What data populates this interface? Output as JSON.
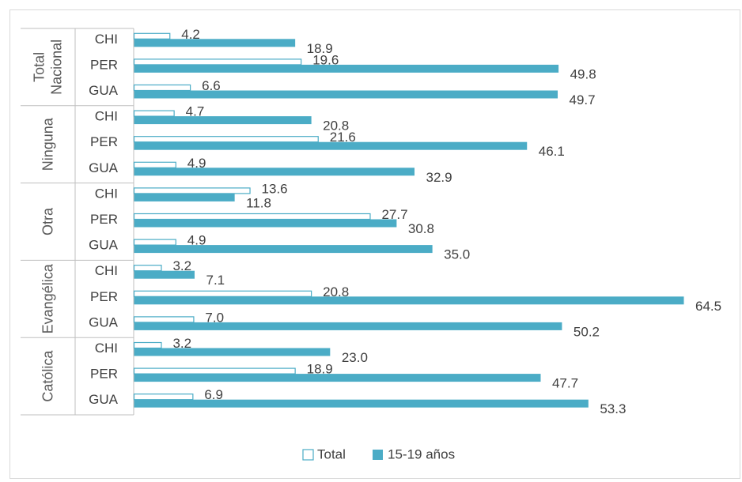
{
  "chart_data": {
    "type": "bar",
    "orientation": "horizontal",
    "groups": [
      {
        "name": "Total Nacional",
        "name_lines": [
          "Total",
          "Nacional"
        ],
        "categories": [
          "CHI",
          "PER",
          "GUA"
        ],
        "total": [
          4.2,
          19.6,
          6.6
        ],
        "adolescent": [
          18.9,
          49.8,
          49.7
        ]
      },
      {
        "name": "Ninguna",
        "name_lines": [
          "Ninguna"
        ],
        "categories": [
          "CHI",
          "PER",
          "GUA"
        ],
        "total": [
          4.7,
          21.6,
          4.9
        ],
        "adolescent": [
          20.8,
          46.1,
          32.9
        ]
      },
      {
        "name": "Otra",
        "name_lines": [
          "Otra"
        ],
        "categories": [
          "CHI",
          "PER",
          "GUA"
        ],
        "total": [
          13.6,
          27.7,
          4.9
        ],
        "adolescent": [
          11.8,
          30.8,
          35.0
        ]
      },
      {
        "name": "Evangélica",
        "name_lines": [
          "Evangélica"
        ],
        "categories": [
          "CHI",
          "PER",
          "GUA"
        ],
        "total": [
          3.2,
          20.8,
          7.0
        ],
        "adolescent": [
          7.1,
          64.5,
          50.2
        ]
      },
      {
        "name": "Católica",
        "name_lines": [
          "Católica"
        ],
        "categories": [
          "CHI",
          "PER",
          "GUA"
        ],
        "total": [
          3.2,
          18.9,
          6.9
        ],
        "adolescent": [
          23.0,
          47.7,
          53.3
        ]
      }
    ],
    "series": [
      {
        "name": "Total",
        "key": "total",
        "color": "#4BACC6",
        "fill": "none"
      },
      {
        "name": "15-19 años",
        "key": "adolescent",
        "color": "#4BACC6",
        "fill": "#4BACC6"
      }
    ],
    "xlim": [
      0,
      65
    ],
    "legend": {
      "position": "bottom"
    },
    "grid": false
  }
}
